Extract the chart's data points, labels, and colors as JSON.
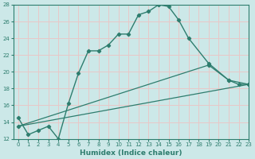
{
  "xlabel": "Humidex (Indice chaleur)",
  "line1_x": [
    0,
    1,
    2,
    3,
    4,
    5,
    6,
    7,
    8,
    9,
    10,
    11,
    12,
    13,
    14,
    15,
    16,
    17,
    19,
    21,
    22,
    23
  ],
  "line1_y": [
    14.5,
    12.5,
    13.0,
    13.5,
    12.0,
    16.2,
    19.8,
    22.5,
    22.5,
    23.2,
    24.5,
    24.5,
    26.8,
    27.2,
    28.0,
    27.8,
    26.2,
    24.0,
    21.0,
    19.0,
    18.5,
    18.5
  ],
  "ref_line1_x": [
    0,
    23
  ],
  "ref_line1_y": [
    13.5,
    18.5
  ],
  "ref_line2_x": [
    0,
    19,
    21,
    23
  ],
  "ref_line2_y": [
    13.5,
    20.8,
    19.0,
    18.5
  ],
  "line_color": "#2e7d6e",
  "bg_color": "#cce8e8",
  "grid_color": "#e8c8c8",
  "ylim": [
    12,
    28
  ],
  "xlim": [
    -0.5,
    23
  ],
  "yticks": [
    12,
    14,
    16,
    18,
    20,
    22,
    24,
    26,
    28
  ],
  "xticks": [
    0,
    1,
    2,
    3,
    4,
    5,
    6,
    7,
    8,
    9,
    10,
    11,
    12,
    13,
    14,
    15,
    16,
    17,
    18,
    19,
    20,
    21,
    22,
    23
  ]
}
